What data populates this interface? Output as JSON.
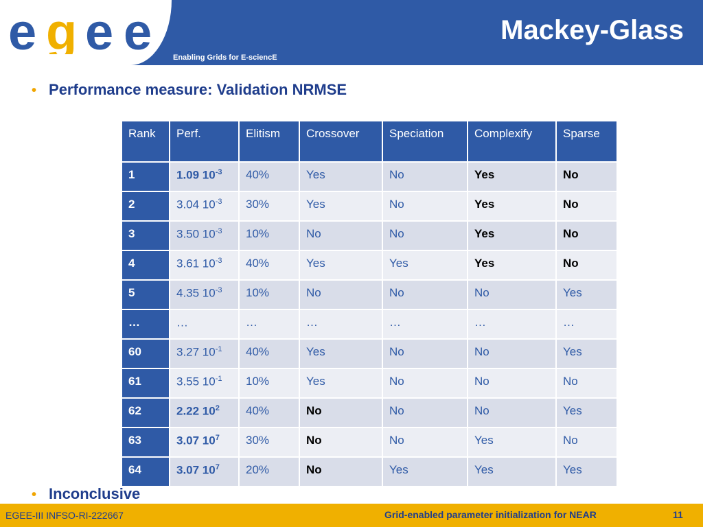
{
  "header": {
    "logo_text": "egee",
    "tagline": "Enabling Grids for E-sciencE",
    "title": "Mackey-Glass"
  },
  "bullets": [
    "Performance measure: Validation NRMSE",
    "Inconclusive"
  ],
  "table": {
    "columns": [
      "Rank",
      "Perf.",
      "Elitism",
      "Crossover",
      "Speciation",
      "Complexify",
      "Sparse"
    ],
    "rows": [
      {
        "rank": "1",
        "mant": "1.09 10",
        "exp": "-3",
        "elitism": "40%",
        "crossover": "Yes",
        "speciation": "No",
        "complexify": "Yes",
        "sparse": "No"
      },
      {
        "rank": "2",
        "mant": "3.04 10",
        "exp": "-3",
        "elitism": "30%",
        "crossover": "Yes",
        "speciation": "No",
        "complexify": "Yes",
        "sparse": "No"
      },
      {
        "rank": "3",
        "mant": "3.50 10",
        "exp": "-3",
        "elitism": "10%",
        "crossover": "No",
        "speciation": "No",
        "complexify": "Yes",
        "sparse": "No"
      },
      {
        "rank": "4",
        "mant": "3.61 10",
        "exp": "-3",
        "elitism": "40%",
        "crossover": "Yes",
        "speciation": "Yes",
        "complexify": "Yes",
        "sparse": "No"
      },
      {
        "rank": "5",
        "mant": "4.35 10",
        "exp": "-3",
        "elitism": "10%",
        "crossover": "No",
        "speciation": "No",
        "complexify": "No",
        "sparse": "Yes"
      },
      {
        "rank": "…",
        "mant": "…",
        "exp": "",
        "elitism": "…",
        "crossover": "…",
        "speciation": "…",
        "complexify": "…",
        "sparse": "…"
      },
      {
        "rank": "60",
        "mant": "3.27 10",
        "exp": "-1",
        "elitism": "40%",
        "crossover": "Yes",
        "speciation": "No",
        "complexify": "No",
        "sparse": "Yes"
      },
      {
        "rank": "61",
        "mant": "3.55 10",
        "exp": "-1",
        "elitism": "10%",
        "crossover": "Yes",
        "speciation": "No",
        "complexify": "No",
        "sparse": "No"
      },
      {
        "rank": "62",
        "mant": "2.22 10",
        "exp": "2",
        "elitism": "40%",
        "crossover": "No",
        "speciation": "No",
        "complexify": "No",
        "sparse": "Yes"
      },
      {
        "rank": "63",
        "mant": "3.07 10",
        "exp": "7",
        "elitism": "30%",
        "crossover": "No",
        "speciation": "No",
        "complexify": "Yes",
        "sparse": "No"
      },
      {
        "rank": "64",
        "mant": "3.07 10",
        "exp": "7",
        "elitism": "20%",
        "crossover": "No",
        "speciation": "Yes",
        "complexify": "Yes",
        "sparse": "Yes"
      }
    ]
  },
  "footer": {
    "left": "EGEE-III INFSO-RI-222667",
    "right": "Grid-enabled parameter initialization for NEAR",
    "page": "11"
  }
}
